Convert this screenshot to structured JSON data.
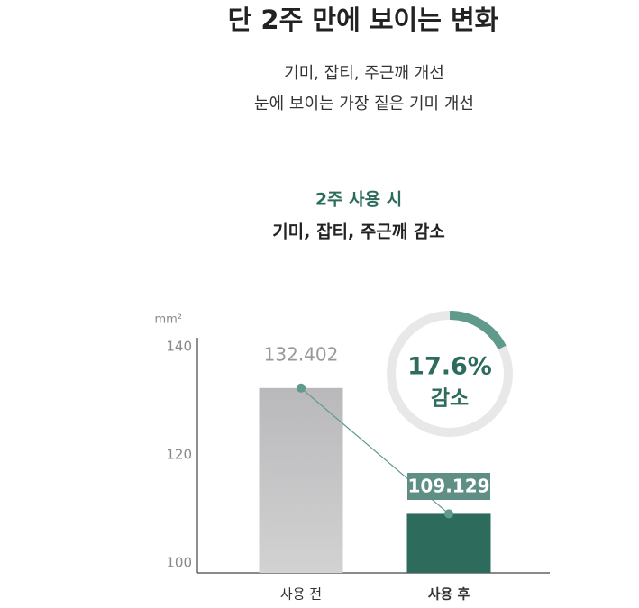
{
  "header": {
    "title": "단 2주 만에 보이는 변화",
    "subtitle_lines": [
      "기미, 잡티, 주근깨 개선",
      "눈에 보이는 가장 짙은 기미 개선"
    ]
  },
  "chart_data": {
    "type": "bar",
    "eyebrow": "2주 사용 시",
    "title": "기미, 잡티, 주근깨 감소",
    "y_unit": "mm²",
    "categories": [
      "사용 전",
      "사용 후"
    ],
    "values": [
      132.402,
      109.129
    ],
    "colors": [
      "#c6c5c7",
      "#2d6b5d"
    ],
    "ylim": [
      98.2,
      141.7
    ],
    "yticks": [
      100,
      120,
      140
    ],
    "connector_color": "#5f9a8c",
    "highlight": 1,
    "reduction": {
      "value": 17.6,
      "label": "17.6%",
      "caption": "감소",
      "color": "#5f9a8c"
    }
  }
}
